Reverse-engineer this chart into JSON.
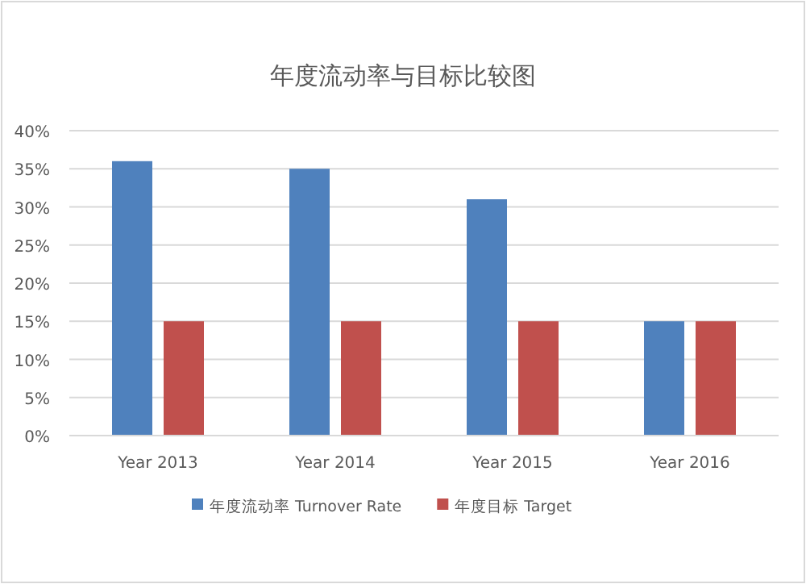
{
  "chart_data": {
    "type": "bar",
    "title": "年度流动率与目标比较图",
    "categories": [
      "Year 2013",
      "Year 2014",
      "Year 2015",
      "Year 2016"
    ],
    "series": [
      {
        "name": "年度流动率 Turnover Rate",
        "color": "#4f81bd",
        "values": [
          36,
          35,
          31,
          15
        ]
      },
      {
        "name": "年度目标 Target",
        "color": "#c0504d",
        "values": [
          15,
          15,
          15,
          15
        ]
      }
    ],
    "ylim": [
      0,
      40
    ],
    "yticks": [
      {
        "value": 0,
        "label": "0%"
      },
      {
        "value": 5,
        "label": "5%"
      },
      {
        "value": 10,
        "label": "10%"
      },
      {
        "value": 15,
        "label": "15%"
      },
      {
        "value": 20,
        "label": "20%"
      },
      {
        "value": 25,
        "label": "25%"
      },
      {
        "value": 30,
        "label": "30%"
      },
      {
        "value": 35,
        "label": "35%"
      },
      {
        "value": 40,
        "label": "40%"
      }
    ],
    "grid": "y",
    "legend": "bottom"
  }
}
